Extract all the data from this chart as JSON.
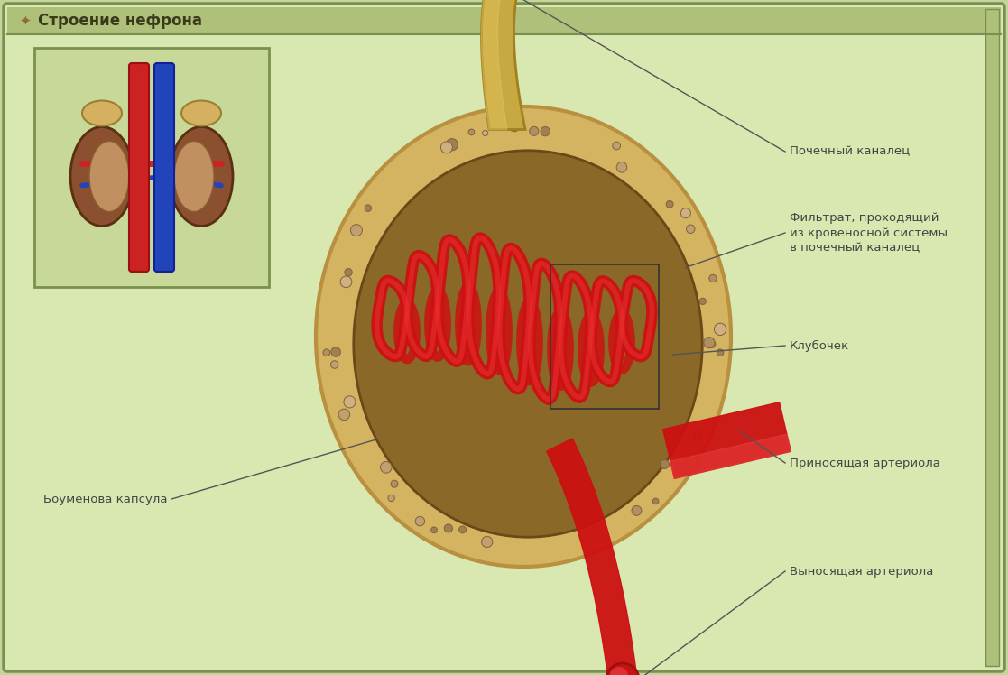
{
  "title": "Строение нефрона",
  "title_fontsize": 12,
  "title_color": "#3a3a1a",
  "bg_outer": "#c5d49a",
  "bg_inner": "#d8e8b0",
  "header_bg": "#afc07a",
  "border_color": "#7a9050",
  "label_color": "#444444",
  "label_fontsize": 9.5,
  "line_color": "#555555",
  "capsule_wall_color": "#d4b460",
  "capsule_inner_color": "#8a6828",
  "capsule_dark": "#6a4818",
  "glomerulus_color": "#cc1111",
  "glomerulus_highlight": "#ee3333",
  "glomerulus_shadow": "#881111",
  "arteriole_color": "#cc1111",
  "arteriole_highlight": "#ee3333",
  "tubule_color": "#c8a840",
  "tubule_edge": "#a08020",
  "inset_bg": "#c8d898",
  "inset_border": "#7a9050",
  "kidney_color": "#8B5030",
  "kidney_medulla": "#c09060",
  "aorta_color": "#cc2222",
  "vena_color": "#2244bb",
  "adrenal_color": "#d4b060",
  "labels": {
    "kanalets": "Почечный каналец",
    "filtrat": "Фильтрат, проходящий\nиз кровеносной системы\nв почечный каналец",
    "klubochek": "Клубочек",
    "kapsyla": "Боуменова капсула",
    "prinosyashchaya": "Приносящая артериола",
    "vynosyashchaya": "Выносящая артериола"
  }
}
